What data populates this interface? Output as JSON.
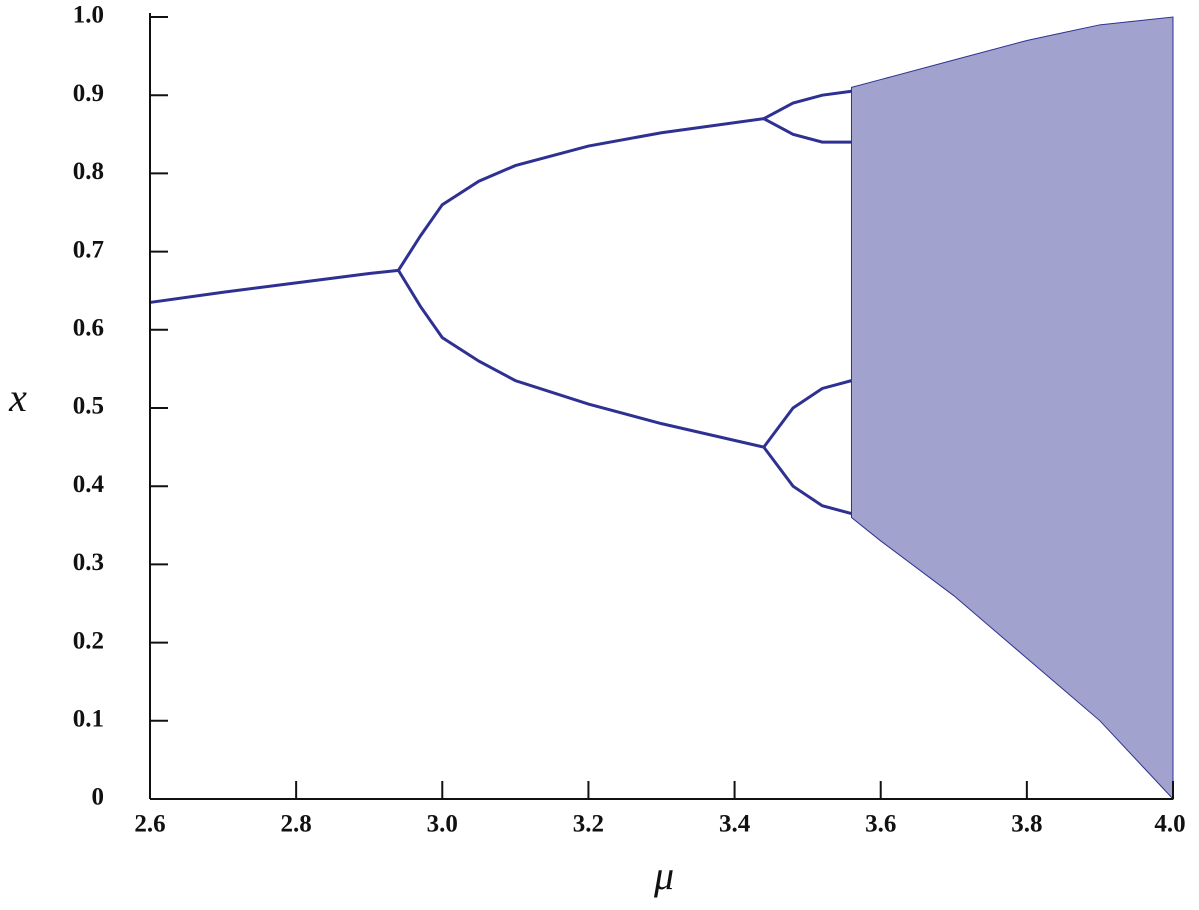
{
  "chart_data": {
    "type": "bifurcation",
    "xlabel": "μ",
    "ylabel": "x",
    "xlim": [
      2.6,
      4.0
    ],
    "ylim": [
      0,
      1.0
    ],
    "xticks": [
      2.6,
      2.8,
      {
        "value": 3,
        "label": "3.0"
      },
      3.2,
      3.4,
      3.6,
      3.8,
      {
        "value": 4,
        "label": "4.0"
      }
    ],
    "yticks": [
      0,
      0.1,
      0.2,
      0.3,
      0.4,
      0.5,
      0.6,
      0.7,
      0.8,
      0.9,
      {
        "value": 1,
        "label": "1.0"
      }
    ],
    "color": "#2e3192",
    "series": [
      {
        "x": [
          2.6,
          2.7,
          2.8,
          2.9,
          2.94
        ],
        "values": [
          0.635,
          0.648,
          0.66,
          0.672,
          0.676
        ]
      },
      {
        "x": [
          2.94,
          2.97,
          3.0,
          3.05,
          3.1,
          3.2,
          3.3,
          3.44
        ],
        "values": [
          0.676,
          0.72,
          0.76,
          0.79,
          0.81,
          0.835,
          0.852,
          0.87
        ]
      },
      {
        "x": [
          2.94,
          2.97,
          3.0,
          3.05,
          3.1,
          3.2,
          3.3,
          3.44
        ],
        "values": [
          0.676,
          0.63,
          0.59,
          0.56,
          0.535,
          0.505,
          0.48,
          0.45
        ]
      },
      {
        "x": [
          3.44,
          3.48,
          3.52,
          3.56
        ],
        "values": [
          0.87,
          0.89,
          0.9,
          0.905
        ]
      },
      {
        "x": [
          3.44,
          3.48,
          3.52,
          3.56
        ],
        "values": [
          0.87,
          0.85,
          0.84,
          0.84
        ]
      },
      {
        "x": [
          3.44,
          3.48,
          3.52,
          3.56
        ],
        "values": [
          0.45,
          0.5,
          0.525,
          0.535
        ]
      },
      {
        "x": [
          3.44,
          3.48,
          3.52,
          3.56
        ],
        "values": [
          0.45,
          0.4,
          0.375,
          0.365
        ]
      }
    ],
    "band": {
      "x": [
        3.56,
        3.6,
        3.7,
        3.8,
        3.85,
        3.9,
        4.0
      ],
      "low": [
        0.36,
        0.33,
        0.26,
        0.18,
        0.14,
        0.1,
        0.0
      ],
      "high": [
        0.91,
        0.92,
        0.945,
        0.97,
        0.98,
        0.99,
        1.0
      ]
    }
  }
}
